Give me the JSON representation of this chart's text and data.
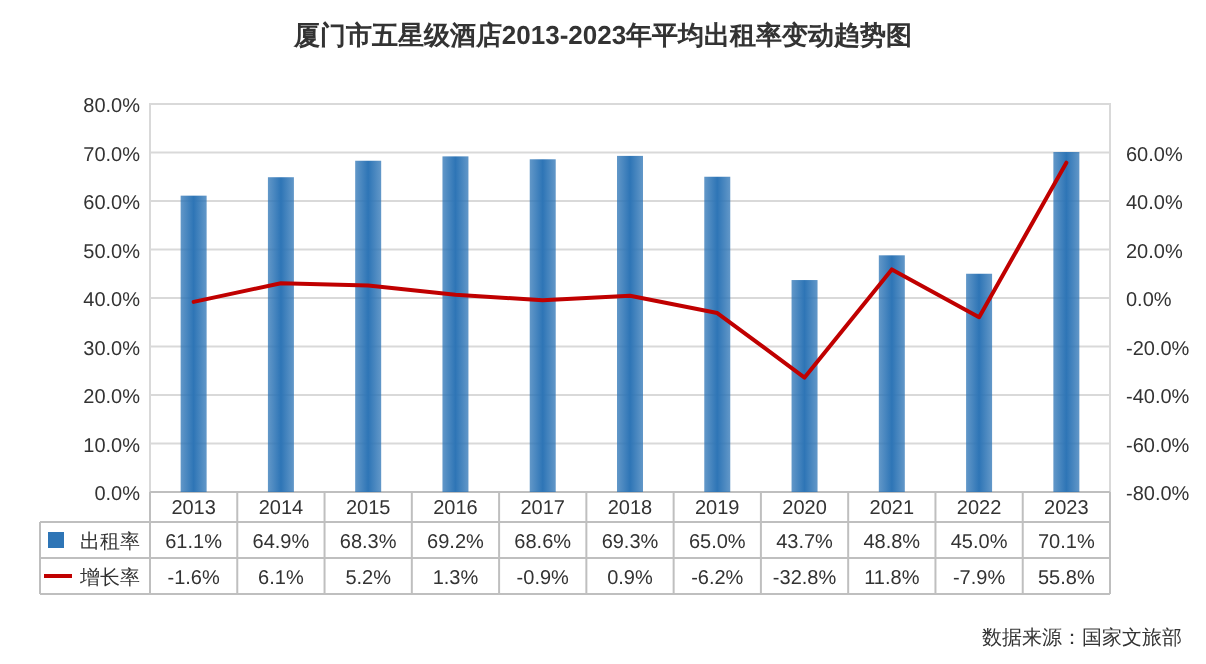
{
  "chart_data": {
    "type": "bar",
    "title": "厦门市五星级酒店2013-2023年平均出租率变动趋势图",
    "categories": [
      "2013",
      "2014",
      "2015",
      "2016",
      "2017",
      "2018",
      "2019",
      "2020",
      "2021",
      "2022",
      "2023"
    ],
    "series": [
      {
        "name": "出租率",
        "color": "#2e75b6",
        "values": [
          61.1,
          64.9,
          68.3,
          69.2,
          68.6,
          69.3,
          65.0,
          43.7,
          48.8,
          45.0,
          70.1
        ],
        "value_labels": [
          "61.1%",
          "64.9%",
          "68.3%",
          "69.2%",
          "68.6%",
          "69.3%",
          "65.0%",
          "43.7%",
          "48.8%",
          "45.0%",
          "70.1%"
        ]
      },
      {
        "name": "增长率",
        "type": "line",
        "axis": "y2",
        "color": "#c00000",
        "values": [
          -1.6,
          6.1,
          5.2,
          1.3,
          -0.9,
          0.9,
          -6.2,
          -32.8,
          11.8,
          -7.9,
          55.8
        ],
        "value_labels": [
          "-1.6%",
          "6.1%",
          "5.2%",
          "1.3%",
          "-0.9%",
          "0.9%",
          "-6.2%",
          "-32.8%",
          "11.8%",
          "-7.9%",
          "55.8%"
        ]
      }
    ],
    "ylim": [
      0,
      80
    ],
    "yticks": [
      {
        "value": 0,
        "label": "0.0%"
      },
      {
        "value": 10,
        "label": "10.0%"
      },
      {
        "value": 20,
        "label": "20.0%"
      },
      {
        "value": 30,
        "label": "30.0%"
      },
      {
        "value": 40,
        "label": "40.0%"
      },
      {
        "value": 50,
        "label": "50.0%"
      },
      {
        "value": 60,
        "label": "60.0%"
      },
      {
        "value": 70,
        "label": "70.0%"
      },
      {
        "value": 80,
        "label": "80.0%"
      }
    ],
    "y2lim": [
      -80,
      80
    ],
    "y2ticks": [
      {
        "value": -80,
        "label": "-80.0%"
      },
      {
        "value": -60,
        "label": "-60.0%"
      },
      {
        "value": -40,
        "label": "-40.0%"
      },
      {
        "value": -20,
        "label": "-20.0%"
      },
      {
        "value": 0,
        "label": "0.0%"
      },
      {
        "value": 20,
        "label": "20.0%"
      },
      {
        "value": 40,
        "label": "40.0%"
      },
      {
        "value": 60,
        "label": "60.0%"
      }
    ],
    "grid": "y",
    "legend": "bottom",
    "annotations": [
      "数据来源：国家文旅部"
    ]
  }
}
